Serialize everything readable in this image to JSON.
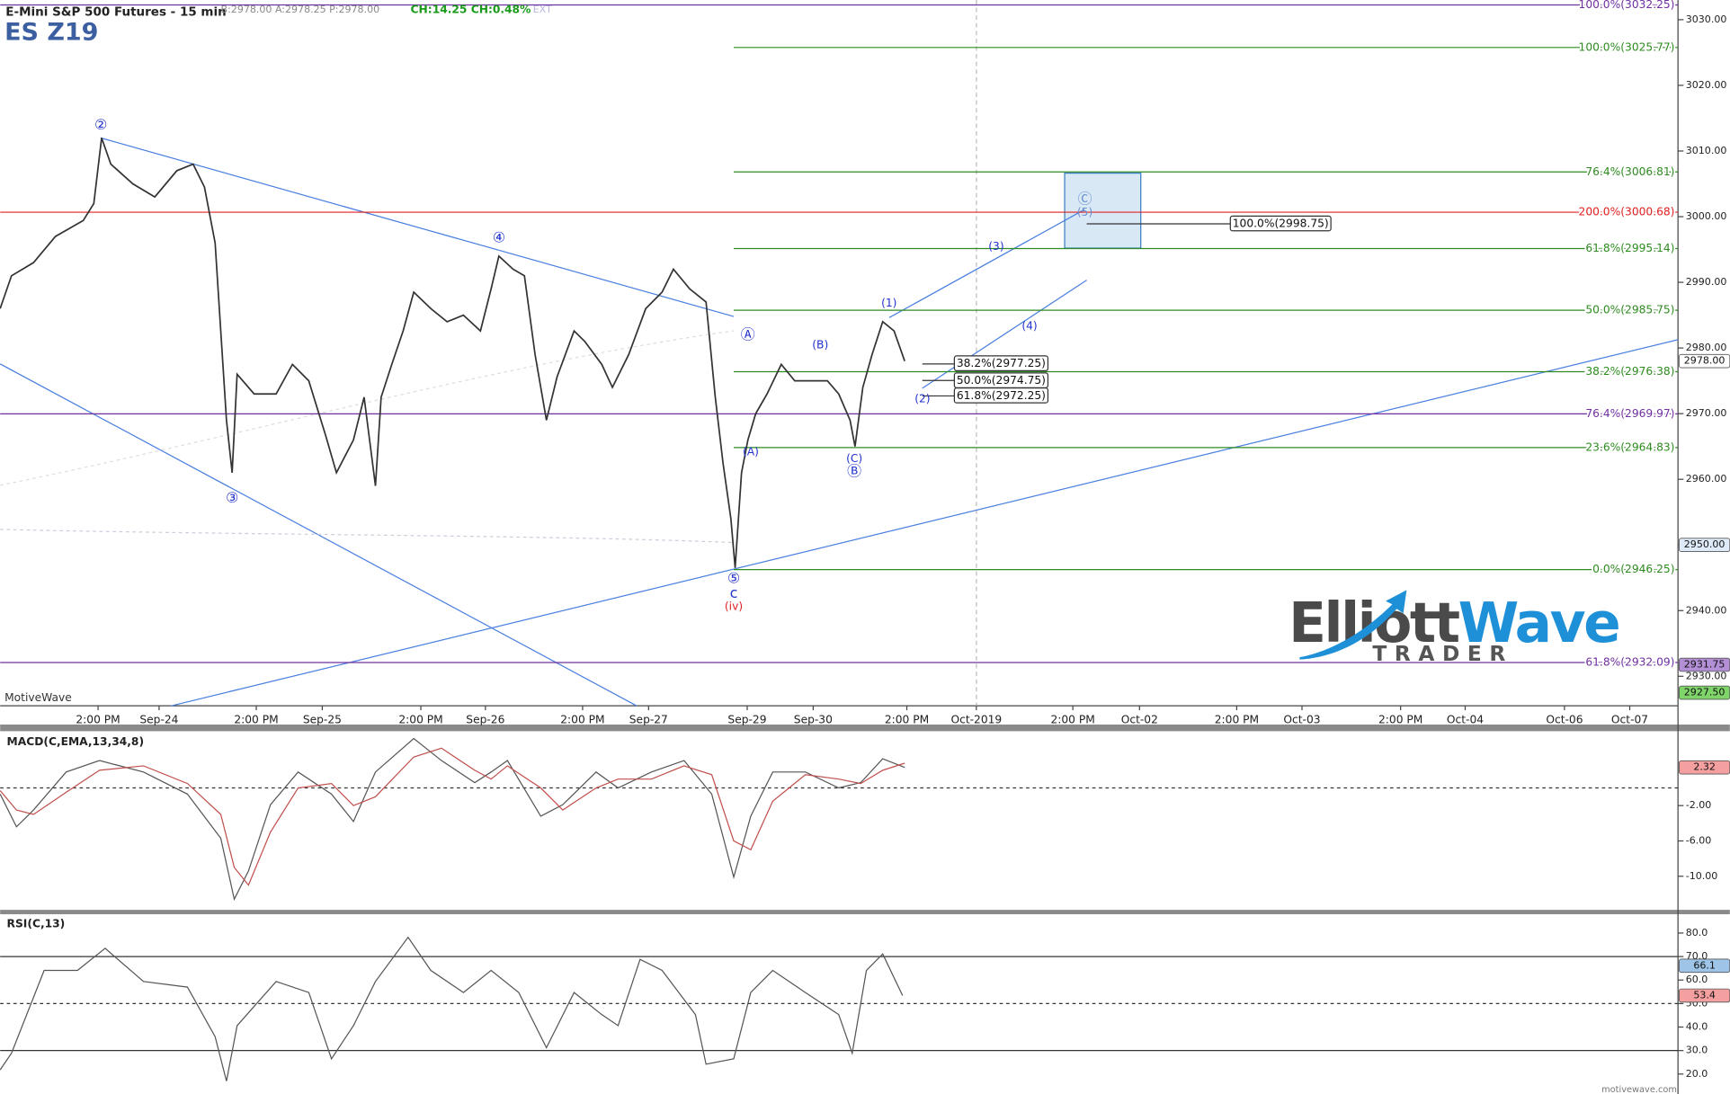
{
  "chart_data": [
    {
      "type": "line",
      "title": "E-Mini S&P 500 Futures - 15 min",
      "subtitle": "ES Z19",
      "quote": "B:2978.00 A:2978.25 P:2978.00",
      "change": "CH:14.25 CH:0.48%",
      "session": "EXT",
      "source": "MotiveWave",
      "xlim": [
        0,
        236.5
      ],
      "xticks": [
        {
          "value": 13.8,
          "label": "2:00 PM"
        },
        {
          "value": 22.4,
          "label": "Sep-24"
        },
        {
          "value": 36.1,
          "label": "2:00 PM"
        },
        {
          "value": 45.4,
          "label": "Sep-25"
        },
        {
          "value": 59.3,
          "label": "2:00 PM"
        },
        {
          "value": 68.4,
          "label": "Sep-26"
        },
        {
          "value": 82.1,
          "label": "2:00 PM"
        },
        {
          "value": 91.4,
          "label": "Sep-27"
        },
        {
          "value": 105.3,
          "label": "Sep-29"
        },
        {
          "value": 114.6,
          "label": "Sep-30"
        },
        {
          "value": 127.8,
          "label": "2:00 PM"
        },
        {
          "value": 137.6,
          "label": "Oct-2019"
        },
        {
          "value": 151.2,
          "label": "2:00 PM"
        },
        {
          "value": 160.6,
          "label": "Oct-02"
        },
        {
          "value": 174.3,
          "label": "2:00 PM"
        },
        {
          "value": 183.5,
          "label": "Oct-03"
        },
        {
          "value": 197.4,
          "label": "2:00 PM"
        },
        {
          "value": 206.5,
          "label": "Oct-04"
        },
        {
          "value": 220.5,
          "label": "Oct-06"
        },
        {
          "value": 229.7,
          "label": "Oct-07"
        }
      ],
      "ylim": [
        2925.5,
        3033.0
      ],
      "yticks": [
        {
          "value": 2930,
          "label": "2930.00"
        },
        {
          "value": 2940,
          "label": "2940.00"
        },
        {
          "value": 2950,
          "label": "2950.00"
        },
        {
          "value": 2960,
          "label": "2960.00"
        },
        {
          "value": 2970,
          "label": "2970.00"
        },
        {
          "value": 2980,
          "label": "2980.00"
        },
        {
          "value": 2990,
          "label": "2990.00"
        },
        {
          "value": 3000,
          "label": "3000.00"
        },
        {
          "value": 3010,
          "label": "3010.00"
        },
        {
          "value": 3020,
          "label": "3020.00"
        },
        {
          "value": 3030,
          "label": "3030.00"
        }
      ],
      "series": [
        {
          "color": "#333333",
          "x": [
            0,
            1.6,
            4.7,
            7.8,
            11.7,
            13.2,
            14.3,
            15.6,
            18.7,
            21.8,
            24.9,
            27.2,
            28.8,
            30.3,
            31.9,
            32.7,
            33.4,
            35.8,
            38.9,
            41.2,
            43.5,
            45.9,
            47.4,
            49.8,
            51.3,
            52.9,
            53.7,
            55.2,
            56.8,
            58.3,
            60.7,
            63,
            65.3,
            67.7,
            69.2,
            70.3,
            72.3,
            73.9,
            75.4,
            77,
            78.5,
            80.9,
            82.4,
            84.8,
            86.3,
            88.6,
            91,
            93.3,
            94.9,
            97.2,
            99.5,
            100.8,
            101.9,
            103,
            103.6,
            104.5,
            105.4,
            106.5,
            108.1,
            110.1,
            112,
            114.3,
            116.6,
            118.2,
            119.8,
            120.5,
            121.6,
            122.9,
            124.4,
            126,
            127.5
          ],
          "values": [
            2986,
            2991,
            2993,
            2997,
            2999.4,
            3002,
            3012,
            3008,
            3005,
            3003,
            3007,
            3008,
            3004.5,
            2996,
            2969,
            2961,
            2976,
            2973,
            2973,
            2977.5,
            2975,
            2966.6,
            2961,
            2966,
            2972.5,
            2959,
            2972.5,
            2977.5,
            2982.6,
            2988.5,
            2986,
            2984,
            2985,
            2982.6,
            2989,
            2994,
            2992,
            2991,
            2979,
            2969,
            2975.6,
            2982.6,
            2981,
            2977.5,
            2974,
            2979,
            2986,
            2988.5,
            2992,
            2989,
            2987,
            2972.5,
            2962.4,
            2954,
            2946.5,
            2961,
            2966,
            2970,
            2973,
            2977.5,
            2975,
            2975,
            2975,
            2973,
            2969,
            2965,
            2974,
            2979,
            2984,
            2982.6,
            2978
          ]
        }
      ],
      "levels": [
        {
          "label": "100.0%(3032.25)",
          "value": 3032.25,
          "color": "#7030a0",
          "span": "full"
        },
        {
          "label": "100.0%(3025.77)",
          "value": 3025.77,
          "color": "#2e8b20",
          "span": "projection"
        },
        {
          "label": "76.4%(3006.81)",
          "value": 3006.81,
          "color": "#2e8b20",
          "span": "projection"
        },
        {
          "label": "200.0%(3000.68)",
          "value": 3000.68,
          "color": "#e02020",
          "span": "full"
        },
        {
          "label": "61.8%(2995.14)",
          "value": 2995.14,
          "color": "#2e8b20",
          "span": "projection"
        },
        {
          "label": "50.0%(2985.75)",
          "value": 2985.75,
          "color": "#2e8b20",
          "span": "projection"
        },
        {
          "label": "38.2%(2976.38)",
          "value": 2976.38,
          "color": "#2e8b20",
          "span": "projection"
        },
        {
          "label": "76.4%(2969.97)",
          "value": 2969.97,
          "color": "#7030a0",
          "span": "full"
        },
        {
          "label": "23.6%(2964.83)",
          "value": 2964.83,
          "color": "#2e8b20",
          "span": "projection"
        },
        {
          "label": "0.0%(2946.25)",
          "value": 2946.25,
          "color": "#2e8b20",
          "span": "projection"
        },
        {
          "label": "61.8%(2932.09)",
          "value": 2932.09,
          "color": "#7030a0",
          "span": "full"
        }
      ],
      "price_markers": [
        {
          "value": 2978,
          "label": "2978.00",
          "color": "#ffffff"
        },
        {
          "value": 2950,
          "label": "2950.00",
          "color": "#dfeaf8"
        },
        {
          "value": 2931.75,
          "label": "2931.75",
          "color": "#b38fd6"
        },
        {
          "value": 2927.5,
          "label": "2927.50",
          "color": "#7fd46a"
        }
      ],
      "annotations": [
        {
          "text": "②",
          "x": 14.2,
          "y": 3013.9,
          "color": "#2233cc"
        },
        {
          "text": "③",
          "x": 32.7,
          "y": 2957.1,
          "color": "#2233cc"
        },
        {
          "text": "④",
          "x": 70.3,
          "y": 2996.7,
          "color": "#2233cc"
        },
        {
          "text": "⑤",
          "x": 103.4,
          "y": 2944.8,
          "color": "#2233cc"
        },
        {
          "text": "c",
          "x": 103.4,
          "y": 2942.6,
          "color": "#2233cc"
        },
        {
          "text": "(iv)",
          "x": 103.4,
          "y": 2940.6,
          "color": "#e02020"
        },
        {
          "text": "Ⓐ",
          "x": 105.4,
          "y": 2981.9,
          "color": "#2233cc"
        },
        {
          "text": "(A)",
          "x": 105.8,
          "y": 2964.1,
          "color": "#2233cc"
        },
        {
          "text": "(B)",
          "x": 115.6,
          "y": 2980.4,
          "color": "#2233cc"
        },
        {
          "text": "(C)",
          "x": 120.4,
          "y": 2963.1,
          "color": "#2233cc"
        },
        {
          "text": "Ⓑ",
          "x": 120.4,
          "y": 2961.1,
          "color": "#2233cc"
        },
        {
          "text": "(1)",
          "x": 125.3,
          "y": 2986.8,
          "color": "#2233cc"
        },
        {
          "text": "(2)",
          "x": 130,
          "y": 2972.2,
          "color": "#2233cc"
        },
        {
          "text": "(3)",
          "x": 140.4,
          "y": 2995.4,
          "color": "#2233cc"
        },
        {
          "text": "(4)",
          "x": 145.1,
          "y": 2983.3,
          "color": "#2233cc"
        },
        {
          "text": "Ⓒ",
          "x": 152.9,
          "y": 3002.6,
          "color": "#6a8fd0"
        },
        {
          "text": "(5)",
          "x": 152.9,
          "y": 3000.6,
          "color": "#6a8fd0"
        },
        {
          "text": "100.0%(2998.75)",
          "x": 173.4,
          "y": 2998.9,
          "color": "#111111",
          "boxed": true
        },
        {
          "text": "38.2%(2977.25)",
          "x": 134.5,
          "y": 2977.6,
          "color": "#111111",
          "boxed": true
        },
        {
          "text": "50.0%(2974.75)",
          "x": 134.5,
          "y": 2975.0,
          "color": "#111111",
          "boxed": true
        },
        {
          "text": "61.8%(2972.25)",
          "x": 134.5,
          "y": 2972.7,
          "color": "#111111",
          "boxed": true
        }
      ]
    },
    {
      "type": "line",
      "title": "MACD(C,EMA,13,34,8)",
      "xlim": [
        0,
        236.5
      ],
      "ylim": [
        -13.8,
        6.3
      ],
      "yticks": [
        {
          "value": -10,
          "label": "-10.00"
        },
        {
          "value": -6,
          "label": "-6.00"
        },
        {
          "value": -2,
          "label": "-2.00"
        }
      ],
      "reference_lines": [
        {
          "value": 0,
          "style": "dashed"
        }
      ],
      "price_markers": [
        {
          "value": 2.32,
          "label": "2.32",
          "color": "#f4a0a0"
        }
      ],
      "series": [
        {
          "color": "#555555",
          "x": [
            0,
            2.3,
            4.7,
            9.3,
            14,
            20.2,
            26.4,
            31.1,
            33,
            35,
            38.1,
            42,
            46.7,
            49.8,
            52.9,
            58.3,
            62.2,
            66.9,
            69.2,
            71.5,
            76.2,
            79.3,
            84,
            87.1,
            91.8,
            96.4,
            100.3,
            103.4,
            105.8,
            108.9,
            113.5,
            118.2,
            121.3,
            124.4,
            127.5
          ],
          "values": [
            -0.7,
            -4.4,
            -2.5,
            1.8,
            3.1,
            1.8,
            -0.7,
            -5.7,
            -12.6,
            -9.4,
            -1.9,
            1.8,
            -0.7,
            -3.8,
            1.8,
            5.6,
            3.1,
            0.6,
            1.8,
            3.1,
            -3.2,
            -1.9,
            1.8,
            0,
            1.8,
            3.1,
            -0.7,
            -10.1,
            -3.2,
            1.8,
            1.8,
            0,
            0.6,
            3.3,
            2.32
          ]
        },
        {
          "color": "#c0504d",
          "x": [
            0,
            2.3,
            4.7,
            9.3,
            14,
            20.2,
            26.4,
            31.1,
            33,
            35,
            38.1,
            42,
            46.7,
            49.8,
            52.9,
            58.3,
            62.2,
            66.9,
            69.2,
            71.5,
            76.2,
            79.3,
            84,
            87.1,
            91.8,
            96.4,
            100.3,
            103.4,
            105.8,
            108.9,
            113.5,
            118.2,
            121.3,
            124.4,
            127.5
          ],
          "values": [
            -0.3,
            -2.5,
            -3,
            -0.5,
            2,
            2.5,
            0.5,
            -3,
            -9,
            -11,
            -5,
            0,
            0.5,
            -2,
            -1,
            3.5,
            4.5,
            2,
            1,
            2.5,
            0,
            -2.5,
            0,
            1,
            1,
            2.5,
            1.5,
            -6,
            -7,
            -1.5,
            1.5,
            1,
            0.5,
            2,
            2.8
          ]
        }
      ]
    },
    {
      "type": "line",
      "title": "RSI(C,13)",
      "xlim": [
        0,
        236.5
      ],
      "ylim": [
        14.8,
        88.0
      ],
      "yticks": [
        {
          "value": 20,
          "label": "20.0"
        },
        {
          "value": 30,
          "label": "30.0"
        },
        {
          "value": 40,
          "label": "40.0"
        },
        {
          "value": 50,
          "label": "50.0"
        },
        {
          "value": 60,
          "label": "60.0"
        },
        {
          "value": 70,
          "label": "70.0"
        },
        {
          "value": 80,
          "label": "80.0"
        }
      ],
      "reference_lines": [
        {
          "value": 70,
          "style": "solid"
        },
        {
          "value": 50,
          "style": "dashed"
        },
        {
          "value": 30,
          "style": "solid"
        }
      ],
      "price_markers": [
        {
          "value": 66.1,
          "label": "66.1",
          "color": "#9ec5e8"
        },
        {
          "value": 53.4,
          "label": "53.4",
          "color": "#f4a0a0"
        }
      ],
      "series": [
        {
          "color": "#555555",
          "x": [
            0,
            1.6,
            6.2,
            10.9,
            14.8,
            20.2,
            26.4,
            30.3,
            31.9,
            33.4,
            38.9,
            43.5,
            46.7,
            49.8,
            52.9,
            57.5,
            60.7,
            65.3,
            69.2,
            73.1,
            77,
            80.9,
            84.8,
            87.1,
            90.2,
            93.3,
            98,
            99.5,
            103.4,
            105.8,
            108.9,
            113.5,
            118.2,
            120.1,
            122.1,
            124.4,
            127.2
          ],
          "values": [
            21.8,
            28.9,
            64.1,
            64.1,
            73.5,
            59.4,
            57,
            35.9,
            17,
            40.6,
            59.4,
            54.7,
            26.5,
            40.6,
            59.4,
            78.2,
            64.1,
            54.7,
            64.1,
            54.7,
            31.2,
            54.7,
            45.3,
            40.6,
            68.8,
            64.1,
            45.3,
            24.2,
            26.5,
            54.7,
            64.1,
            54.7,
            45.3,
            28.9,
            64.1,
            71.1,
            53.4
          ]
        }
      ]
    }
  ],
  "logo": {
    "brand_left": "Elliott",
    "brand_right": "Wave",
    "tagline": "TRADER"
  },
  "footer": "motivewave.com"
}
